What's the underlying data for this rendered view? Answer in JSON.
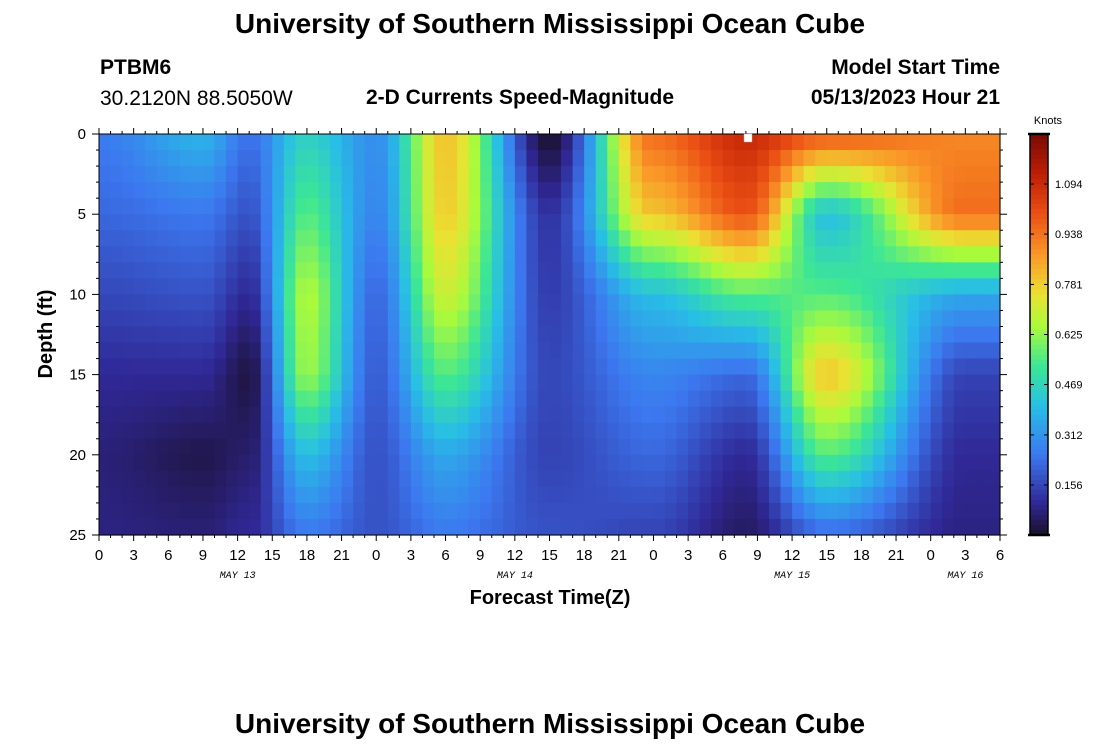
{
  "header": {
    "title": "University of Southern Mississippi Ocean Cube",
    "station": "PTBM6",
    "coords": "30.2120N  88.5050W",
    "plot_title": "2-D Currents Speed-Magnitude",
    "model_label": "Model Start Time",
    "model_time": "05/13/2023 Hour 21"
  },
  "footer": {
    "title": "University of Southern Mississippi Ocean Cube"
  },
  "chart_data": {
    "type": "heatmap",
    "title": "2-D Currents Speed-Magnitude",
    "xlabel": "Forecast Time(Z)",
    "ylabel": "Depth (ft)",
    "x_tick_labels": [
      "0",
      "3",
      "6",
      "9",
      "12",
      "15",
      "18",
      "21",
      "0",
      "3",
      "6",
      "9",
      "12",
      "15",
      "18",
      "21",
      "0",
      "3",
      "6",
      "9",
      "12",
      "15",
      "18",
      "21",
      "0",
      "3",
      "6"
    ],
    "day_labels": [
      {
        "label": "MAY 13",
        "tick_index": 4
      },
      {
        "label": "MAY 14",
        "tick_index": 12
      },
      {
        "label": "MAY 15",
        "tick_index": 20
      },
      {
        "label": "MAY 16",
        "tick_index": 25
      }
    ],
    "x_range_hours": [
      0,
      78
    ],
    "y_ticks": [
      0,
      5,
      10,
      15,
      20,
      25
    ],
    "y_range_ft": [
      0,
      25
    ],
    "colorbar": {
      "unit": "Knots",
      "ticks": [
        "1.094",
        "0.938",
        "0.781",
        "0.625",
        "0.469",
        "0.312",
        "0.156"
      ],
      "tick_values": [
        1.094,
        0.938,
        0.781,
        0.625,
        0.469,
        0.312,
        0.156
      ],
      "range": [
        0,
        1.25
      ]
    },
    "speed_features_knots": [
      {
        "hour": 0,
        "profile": [
          [
            0,
            0.26
          ],
          [
            5,
            0.22
          ],
          [
            10,
            0.16
          ],
          [
            15,
            0.1
          ],
          [
            20,
            0.07
          ],
          [
            25,
            0.08
          ]
        ]
      },
      {
        "hour": 9,
        "profile": [
          [
            0,
            0.38
          ],
          [
            5,
            0.25
          ],
          [
            10,
            0.18
          ],
          [
            15,
            0.1
          ],
          [
            20,
            0.03
          ],
          [
            25,
            0.07
          ]
        ]
      },
      {
        "hour": 13,
        "profile": [
          [
            0,
            0.24
          ],
          [
            5,
            0.18
          ],
          [
            10,
            0.1
          ],
          [
            15,
            0.02
          ],
          [
            20,
            0.06
          ],
          [
            25,
            0.1
          ]
        ]
      },
      {
        "hour": 18,
        "profile": [
          [
            0,
            0.45
          ],
          [
            5,
            0.55
          ],
          [
            10,
            0.66
          ],
          [
            15,
            0.63
          ],
          [
            20,
            0.4
          ],
          [
            25,
            0.25
          ]
        ]
      },
      {
        "hour": 24,
        "profile": [
          [
            0,
            0.3
          ],
          [
            5,
            0.28
          ],
          [
            10,
            0.22
          ],
          [
            15,
            0.2
          ],
          [
            20,
            0.18
          ],
          [
            25,
            0.18
          ]
        ]
      },
      {
        "hour": 30,
        "profile": [
          [
            0,
            0.8
          ],
          [
            5,
            0.78
          ],
          [
            10,
            0.7
          ],
          [
            15,
            0.55
          ],
          [
            20,
            0.35
          ],
          [
            25,
            0.25
          ]
        ]
      },
      {
        "hour": 39,
        "profile": [
          [
            0,
            0.0
          ],
          [
            5,
            0.12
          ],
          [
            10,
            0.14
          ],
          [
            15,
            0.16
          ],
          [
            20,
            0.15
          ],
          [
            25,
            0.18
          ]
        ]
      },
      {
        "hour": 48,
        "profile": [
          [
            0,
            0.95
          ],
          [
            5,
            0.8
          ],
          [
            10,
            0.4
          ],
          [
            15,
            0.28
          ],
          [
            20,
            0.22
          ],
          [
            25,
            0.15
          ]
        ]
      },
      {
        "hour": 56,
        "profile": [
          [
            0,
            1.1
          ],
          [
            5,
            1.0
          ],
          [
            10,
            0.55
          ],
          [
            15,
            0.22
          ],
          [
            20,
            0.1
          ],
          [
            25,
            0.05
          ]
        ]
      },
      {
        "hour": 63,
        "profile": [
          [
            0,
            1.0
          ],
          [
            5,
            0.4
          ],
          [
            10,
            0.55
          ],
          [
            15,
            0.8
          ],
          [
            20,
            0.55
          ],
          [
            25,
            0.22
          ]
        ]
      },
      {
        "hour": 75,
        "profile": [
          [
            0,
            0.9
          ],
          [
            5,
            0.95
          ],
          [
            10,
            0.35
          ],
          [
            15,
            0.15
          ],
          [
            20,
            0.1
          ],
          [
            25,
            0.08
          ]
        ]
      }
    ]
  }
}
